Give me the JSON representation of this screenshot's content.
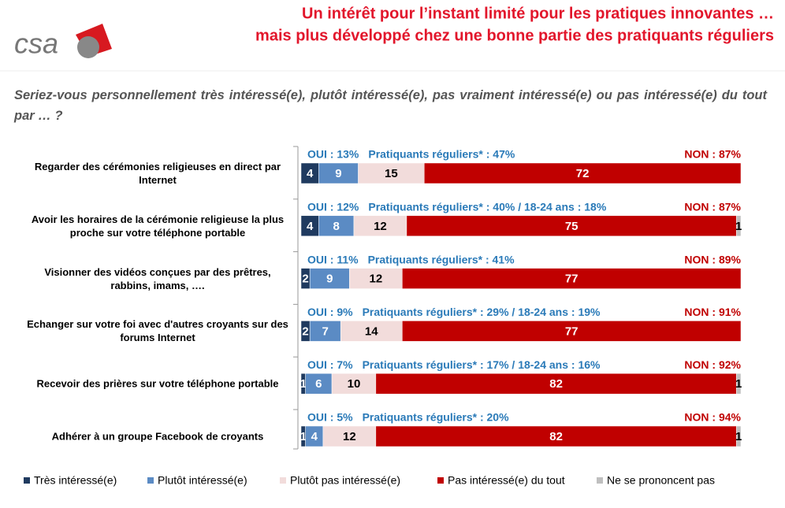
{
  "logo": "csa",
  "chart_data": {
    "type": "stacked-bar-horizontal",
    "title": [
      "Un intérêt pour l’instant limité pour les pratiques innovantes …",
      "mais plus développé chez une bonne partie des pratiquants réguliers"
    ],
    "subtitle": "Seriez-vous personnellement très intéressé(e), plutôt intéressé(e), pas vraiment intéressé(e) ou pas intéressé(e) du tout par … ?",
    "categories": [
      "Regarder des cérémonies religieuses en direct par Internet",
      "Avoir les horaires de la cérémonie religieuse la plus proche sur votre téléphone portable",
      "Visionner des vidéos conçues par des prêtres, rabbins, imams, ….",
      "Echanger sur votre foi avec d'autres croyants sur des forums Internet",
      "Recevoir des prières sur votre téléphone portable",
      "Adhérer à un groupe Facebook de croyants"
    ],
    "series": [
      {
        "name": "Très intéressé(e)",
        "color": "#1f3a5f",
        "values": [
          4,
          4,
          2,
          2,
          1,
          1
        ]
      },
      {
        "name": "Plutôt  intéressé(e)",
        "color": "#5b8bc4",
        "values": [
          9,
          8,
          9,
          7,
          6,
          4
        ]
      },
      {
        "name": "Plutôt pas  intéressé(e)",
        "color": "#f2dcdb",
        "values": [
          15,
          12,
          12,
          14,
          10,
          12
        ]
      },
      {
        "name": "Pas intéressé(e)  du tout",
        "color": "#c00000",
        "values": [
          72,
          75,
          77,
          77,
          82,
          82
        ]
      },
      {
        "name": "Ne se prononcent pas",
        "color": "#bfbfbf",
        "values": [
          null,
          1,
          null,
          null,
          1,
          1
        ]
      }
    ],
    "xlim": [
      0,
      100
    ],
    "annotations": [
      {
        "oui": "OUI : 13%",
        "detail": "Pratiquants réguliers* : 47%",
        "non": "NON : 87%"
      },
      {
        "oui": "OUI : 12%",
        "detail": "Pratiquants réguliers* : 40% / 18-24 ans : 18%",
        "non": "NON : 87%"
      },
      {
        "oui": "OUI : 11%",
        "detail": "Pratiquants réguliers* : 41%",
        "non": "NON : 89%"
      },
      {
        "oui": "OUI : 9%",
        "detail": "Pratiquants réguliers* : 29% / 18-24 ans : 19%",
        "non": "NON : 91%"
      },
      {
        "oui": "OUI : 7%",
        "detail": "Pratiquants réguliers* : 17% / 18-24 ans : 16%",
        "non": "NON : 92%"
      },
      {
        "oui": "OUI : 5%",
        "detail": "Pratiquants réguliers* : 20%",
        "non": "NON : 94%"
      }
    ]
  }
}
